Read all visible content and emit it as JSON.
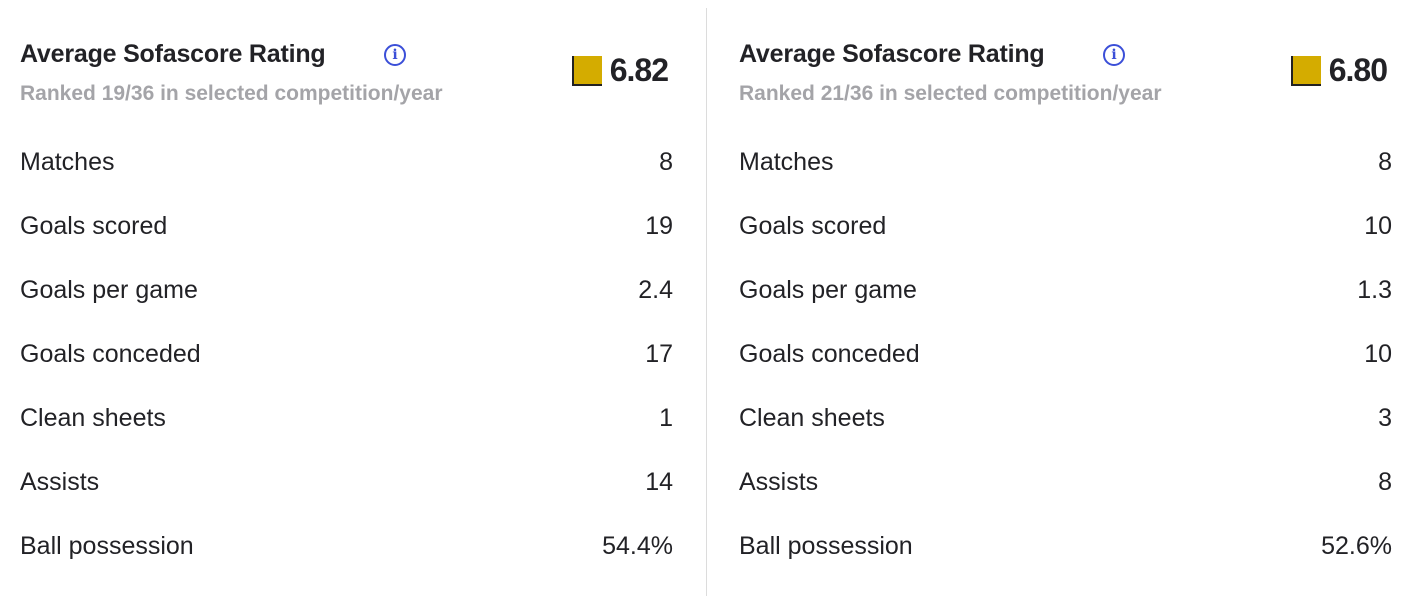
{
  "colors": {
    "rating_swatch": "#d4ac00",
    "info_icon": "#3b4fd8",
    "subtitle": "#a4a4a8"
  },
  "panels": [
    {
      "title": "Average Sofascore Rating",
      "subtitle": "Ranked 19/36 in selected competition/year",
      "rating": "6.82",
      "stats": [
        {
          "label": "Matches",
          "value": "8"
        },
        {
          "label": "Goals scored",
          "value": "19"
        },
        {
          "label": "Goals per game",
          "value": "2.4"
        },
        {
          "label": "Goals conceded",
          "value": "17"
        },
        {
          "label": "Clean sheets",
          "value": "1"
        },
        {
          "label": "Assists",
          "value": "14"
        },
        {
          "label": "Ball possession",
          "value": "54.4%"
        }
      ]
    },
    {
      "title": "Average Sofascore Rating",
      "subtitle": "Ranked 21/36 in selected competition/year",
      "rating": "6.80",
      "stats": [
        {
          "label": "Matches",
          "value": "8"
        },
        {
          "label": "Goals scored",
          "value": "10"
        },
        {
          "label": "Goals per game",
          "value": "1.3"
        },
        {
          "label": "Goals conceded",
          "value": "10"
        },
        {
          "label": "Clean sheets",
          "value": "3"
        },
        {
          "label": "Assists",
          "value": "8"
        },
        {
          "label": "Ball possession",
          "value": "52.6%"
        }
      ]
    }
  ]
}
